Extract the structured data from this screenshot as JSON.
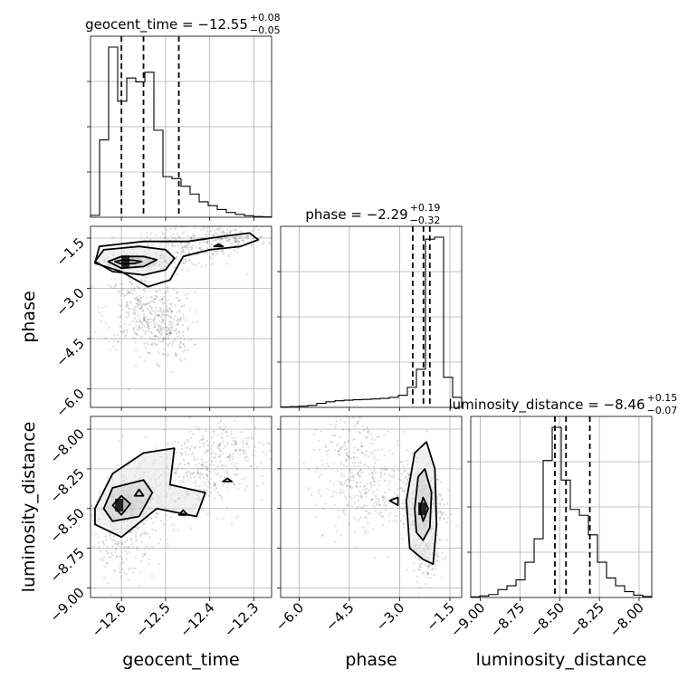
{
  "chart_data": {
    "type": "corner",
    "params": [
      "geocent_time",
      "phase",
      "luminosity_distance"
    ],
    "axis_ranges": {
      "geocent_time": [
        -12.67,
        -12.26
      ],
      "phase": [
        -6.55,
        -1.15
      ],
      "luminosity_distance": [
        -9.06,
        -7.92
      ]
    },
    "ticks": {
      "geocent_time": [
        -12.6,
        -12.5,
        -12.4,
        -12.3
      ],
      "phase": [
        -6.0,
        -4.5,
        -3.0,
        -1.5
      ],
      "luminosity_distance": [
        -9.0,
        -8.75,
        -8.5,
        -8.25,
        -8.0
      ]
    },
    "tick_labels": {
      "geocent_time": [
        "−12.6",
        "−12.5",
        "−12.4",
        "−12.3"
      ],
      "phase": [
        "−6.0",
        "−4.5",
        "−3.0",
        "−1.5"
      ],
      "luminosity_distance": [
        "−9.00",
        "−8.75",
        "−8.50",
        "−8.25",
        "−8.00"
      ]
    },
    "titles": [
      {
        "name": "geocent_time = −12.55",
        "plus": "+0.08",
        "minus": "−0.05"
      },
      {
        "name": "phase = −2.29",
        "plus": "+0.19",
        "minus": "−0.32"
      },
      {
        "name": "luminosity_distance = −8.46",
        "plus": "+0.15",
        "minus": "−0.07"
      }
    ],
    "quantiles": {
      "geocent_time": [
        -12.6,
        -12.55,
        -12.47
      ],
      "phase": [
        -2.61,
        -2.29,
        -2.1
      ],
      "luminosity_distance": [
        -8.53,
        -8.46,
        -8.31
      ]
    },
    "histograms": {
      "geocent_time": {
        "edges": [
          -12.67,
          -12.6495,
          -12.629,
          -12.6085,
          -12.588,
          -12.5675,
          -12.547,
          -12.5265,
          -12.506,
          -12.4855,
          -12.465,
          -12.4445,
          -12.424,
          -12.4035,
          -12.383,
          -12.3625,
          -12.342,
          -12.3215,
          -12.301,
          -12.2805,
          -12.26
        ],
        "counts": [
          0.01,
          0.4,
          0.88,
          0.6,
          0.72,
          0.7,
          0.75,
          0.45,
          0.21,
          0.2,
          0.16,
          0.12,
          0.08,
          0.06,
          0.04,
          0.025,
          0.015,
          0.008,
          0.004,
          0.002
        ]
      },
      "phase": {
        "edges": [
          -6.55,
          -6.28,
          -6.01,
          -5.74,
          -5.47,
          -5.2,
          -4.93,
          -4.66,
          -4.39,
          -4.12,
          -3.85,
          -3.58,
          -3.31,
          -3.04,
          -2.77,
          -2.5,
          -2.23,
          -1.96,
          -1.69,
          -1.42,
          -1.15
        ],
        "counts": [
          0.002,
          0.004,
          0.006,
          0.01,
          0.02,
          0.028,
          0.033,
          0.036,
          0.038,
          0.04,
          0.042,
          0.045,
          0.05,
          0.06,
          0.1,
          0.19,
          0.84,
          0.85,
          0.15,
          0.05
        ]
      },
      "luminosity_distance": {
        "edges": [
          -9.06,
          -9.003,
          -8.946,
          -8.889,
          -8.832,
          -8.775,
          -8.718,
          -8.661,
          -8.604,
          -8.547,
          -8.49,
          -8.433,
          -8.376,
          -8.319,
          -8.262,
          -8.205,
          -8.148,
          -8.091,
          -8.034,
          -7.977,
          -7.92
        ],
        "counts": [
          0.003,
          0.008,
          0.015,
          0.04,
          0.06,
          0.09,
          0.18,
          0.3,
          0.7,
          0.87,
          0.6,
          0.45,
          0.42,
          0.32,
          0.18,
          0.1,
          0.06,
          0.03,
          0.012,
          0.005
        ]
      }
    },
    "density_2d": [
      {
        "x": "geocent_time",
        "y": "phase",
        "contours": [
          [
            [
              -12.615,
              -2.2
            ],
            [
              -12.6,
              -2.16
            ],
            [
              -12.575,
              -2.16
            ],
            [
              -12.555,
              -2.2
            ],
            [
              -12.57,
              -2.26
            ],
            [
              -12.6,
              -2.27
            ],
            [
              -12.615,
              -2.2
            ]
          ],
          [
            [
              -12.63,
              -2.2
            ],
            [
              -12.6,
              -2.05
            ],
            [
              -12.55,
              -2.05
            ],
            [
              -12.52,
              -2.15
            ],
            [
              -12.55,
              -2.35
            ],
            [
              -12.6,
              -2.4
            ],
            [
              -12.63,
              -2.2
            ]
          ],
          [
            [
              -12.66,
              -2.2
            ],
            [
              -12.64,
              -1.85
            ],
            [
              -12.56,
              -1.75
            ],
            [
              -12.5,
              -1.85
            ],
            [
              -12.48,
              -2.1
            ],
            [
              -12.5,
              -2.45
            ],
            [
              -12.55,
              -2.6
            ],
            [
              -12.62,
              -2.5
            ],
            [
              -12.66,
              -2.2
            ]
          ],
          [
            [
              -12.66,
              -2.25
            ],
            [
              -12.65,
              -1.75
            ],
            [
              -12.55,
              -1.6
            ],
            [
              -12.45,
              -1.6
            ],
            [
              -12.37,
              -1.45
            ],
            [
              -12.31,
              -1.35
            ],
            [
              -12.29,
              -1.55
            ],
            [
              -12.33,
              -1.75
            ],
            [
              -12.4,
              -1.85
            ],
            [
              -12.46,
              -2.05
            ],
            [
              -12.49,
              -2.75
            ],
            [
              -12.54,
              -2.95
            ],
            [
              -12.6,
              -2.5
            ],
            [
              -12.66,
              -2.25
            ]
          ],
          [
            [
              -12.39,
              -1.75
            ],
            [
              -12.38,
              -1.68
            ],
            [
              -12.37,
              -1.75
            ],
            [
              -12.39,
              -1.75
            ]
          ]
        ],
        "clouds": [
          {
            "center": [
              -12.57,
              -2.2
            ],
            "sd": [
              0.04,
              0.12
            ],
            "n": 260
          },
          {
            "center": [
              -12.45,
              -1.8
            ],
            "sd": [
              0.06,
              0.3
            ],
            "n": 220
          },
          {
            "center": [
              -12.56,
              -3.6
            ],
            "sd": [
              0.04,
              0.6
            ],
            "n": 260
          },
          {
            "center": [
              -12.5,
              -4.2
            ],
            "sd": [
              0.03,
              0.5
            ],
            "n": 220
          },
          {
            "center": [
              -12.35,
              -1.5
            ],
            "sd": [
              0.04,
              0.15
            ],
            "n": 120
          }
        ]
      },
      {
        "x": "geocent_time",
        "y": "luminosity_distance",
        "contours": [
          [
            [
              -12.62,
              -8.48
            ],
            [
              -12.6,
              -8.42
            ],
            [
              -12.58,
              -8.47
            ],
            [
              -12.6,
              -8.54
            ],
            [
              -12.62,
              -8.48
            ]
          ],
          [
            [
              -12.64,
              -8.5
            ],
            [
              -12.62,
              -8.37
            ],
            [
              -12.55,
              -8.32
            ],
            [
              -12.53,
              -8.4
            ],
            [
              -12.56,
              -8.55
            ],
            [
              -12.62,
              -8.58
            ],
            [
              -12.64,
              -8.5
            ]
          ],
          [
            [
              -12.66,
              -8.5
            ],
            [
              -12.62,
              -8.28
            ],
            [
              -12.55,
              -8.15
            ],
            [
              -12.48,
              -8.12
            ],
            [
              -12.49,
              -8.35
            ],
            [
              -12.41,
              -8.4
            ],
            [
              -12.43,
              -8.55
            ],
            [
              -12.52,
              -8.5
            ],
            [
              -12.6,
              -8.68
            ],
            [
              -12.66,
              -8.6
            ],
            [
              -12.66,
              -8.5
            ]
          ],
          [
            [
              -12.57,
              -8.42
            ],
            [
              -12.56,
              -8.38
            ],
            [
              -12.55,
              -8.42
            ],
            [
              -12.57,
              -8.42
            ]
          ],
          [
            [
              -12.47,
              -8.54
            ],
            [
              -12.46,
              -8.51
            ],
            [
              -12.45,
              -8.54
            ],
            [
              -12.47,
              -8.54
            ]
          ],
          [
            [
              -12.37,
              -8.33
            ],
            [
              -12.36,
              -8.31
            ],
            [
              -12.35,
              -8.33
            ],
            [
              -12.37,
              -8.33
            ]
          ]
        ],
        "clouds": [
          {
            "center": [
              -12.58,
              -8.48
            ],
            "sd": [
              0.035,
              0.07
            ],
            "n": 340
          },
          {
            "center": [
              -12.45,
              -8.3
            ],
            "sd": [
              0.06,
              0.14
            ],
            "n": 300
          },
          {
            "center": [
              -12.35,
              -8.12
            ],
            "sd": [
              0.05,
              0.1
            ],
            "n": 140
          },
          {
            "center": [
              -12.6,
              -8.72
            ],
            "sd": [
              0.04,
              0.12
            ],
            "n": 160
          }
        ]
      },
      {
        "x": "phase",
        "y": "luminosity_distance",
        "contours": [
          [
            [
              -2.4,
              -8.5
            ],
            [
              -2.3,
              -8.43
            ],
            [
              -2.15,
              -8.5
            ],
            [
              -2.3,
              -8.58
            ],
            [
              -2.4,
              -8.5
            ]
          ],
          [
            [
              -2.55,
              -8.5
            ],
            [
              -2.45,
              -8.3
            ],
            [
              -2.25,
              -8.25
            ],
            [
              -2.05,
              -8.4
            ],
            [
              -2.1,
              -8.62
            ],
            [
              -2.3,
              -8.7
            ],
            [
              -2.5,
              -8.65
            ],
            [
              -2.55,
              -8.5
            ]
          ],
          [
            [
              -2.8,
              -8.45
            ],
            [
              -2.55,
              -8.15
            ],
            [
              -2.2,
              -8.08
            ],
            [
              -1.95,
              -8.25
            ],
            [
              -1.9,
              -8.6
            ],
            [
              -2.0,
              -8.85
            ],
            [
              -2.3,
              -8.82
            ],
            [
              -2.7,
              -8.75
            ],
            [
              -2.8,
              -8.45
            ]
          ],
          [
            [
              -3.3,
              -8.45
            ],
            [
              -3.05,
              -8.43
            ],
            [
              -3.05,
              -8.48
            ],
            [
              -3.3,
              -8.45
            ]
          ]
        ],
        "clouds": [
          {
            "center": [
              -2.3,
              -8.48
            ],
            "sd": [
              0.3,
              0.13
            ],
            "n": 360
          },
          {
            "center": [
              -3.8,
              -8.35
            ],
            "sd": [
              0.7,
              0.15
            ],
            "n": 260
          },
          {
            "center": [
              -2.2,
              -8.8
            ],
            "sd": [
              0.2,
              0.1
            ],
            "n": 120
          },
          {
            "center": [
              -4.5,
              -8.2
            ],
            "sd": [
              0.6,
              0.2
            ],
            "n": 160
          }
        ]
      }
    ],
    "grid": true
  }
}
